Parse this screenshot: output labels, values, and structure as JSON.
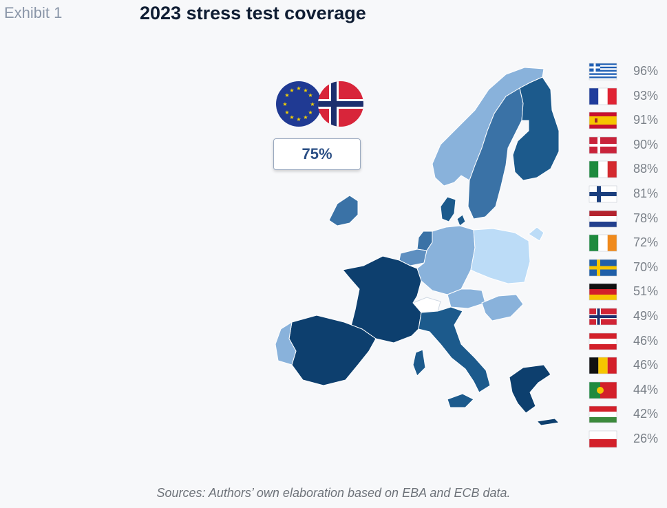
{
  "header": {
    "exhibit_label": "Exhibit 1",
    "title": "2023 stress test coverage"
  },
  "aggregate": {
    "flags": [
      "eu-flag",
      "norway-flag"
    ],
    "value": "75%"
  },
  "legend": [
    {
      "country": "Greece",
      "flag": "greece-flag",
      "value": "96%"
    },
    {
      "country": "France",
      "flag": "france-flag",
      "value": "93%"
    },
    {
      "country": "Spain",
      "flag": "spain-flag",
      "value": "91%"
    },
    {
      "country": "Denmark",
      "flag": "denmark-flag",
      "value": "90%"
    },
    {
      "country": "Italy",
      "flag": "italy-flag",
      "value": "88%"
    },
    {
      "country": "Finland",
      "flag": "finland-flag",
      "value": "81%"
    },
    {
      "country": "Netherlands",
      "flag": "netherlands-flag",
      "value": "78%"
    },
    {
      "country": "Ireland",
      "flag": "ireland-flag",
      "value": "72%"
    },
    {
      "country": "Sweden",
      "flag": "sweden-flag",
      "value": "70%"
    },
    {
      "country": "Germany",
      "flag": "germany-flag",
      "value": "51%"
    },
    {
      "country": "Norway",
      "flag": "norway-flag",
      "value": "49%"
    },
    {
      "country": "Austria",
      "flag": "austria-flag",
      "value": "46%"
    },
    {
      "country": "Belgium",
      "flag": "belgium-flag",
      "value": "46%"
    },
    {
      "country": "Portugal",
      "flag": "portugal-flag",
      "value": "44%"
    },
    {
      "country": "Hungary",
      "flag": "hungary-flag",
      "value": "42%"
    },
    {
      "country": "Poland",
      "flag": "poland-flag",
      "value": "26%"
    }
  ],
  "map_colors": {
    "darkest": "#0d3f6e",
    "dark": "#1c5a8c",
    "mid_dark": "#3a72a6",
    "mid": "#5e8fc0",
    "light": "#89b2db",
    "lightest": "#bcdcf7"
  },
  "footer": {
    "sources": "Sources: Authors’ own elaboration based on EBA and ECB data."
  }
}
